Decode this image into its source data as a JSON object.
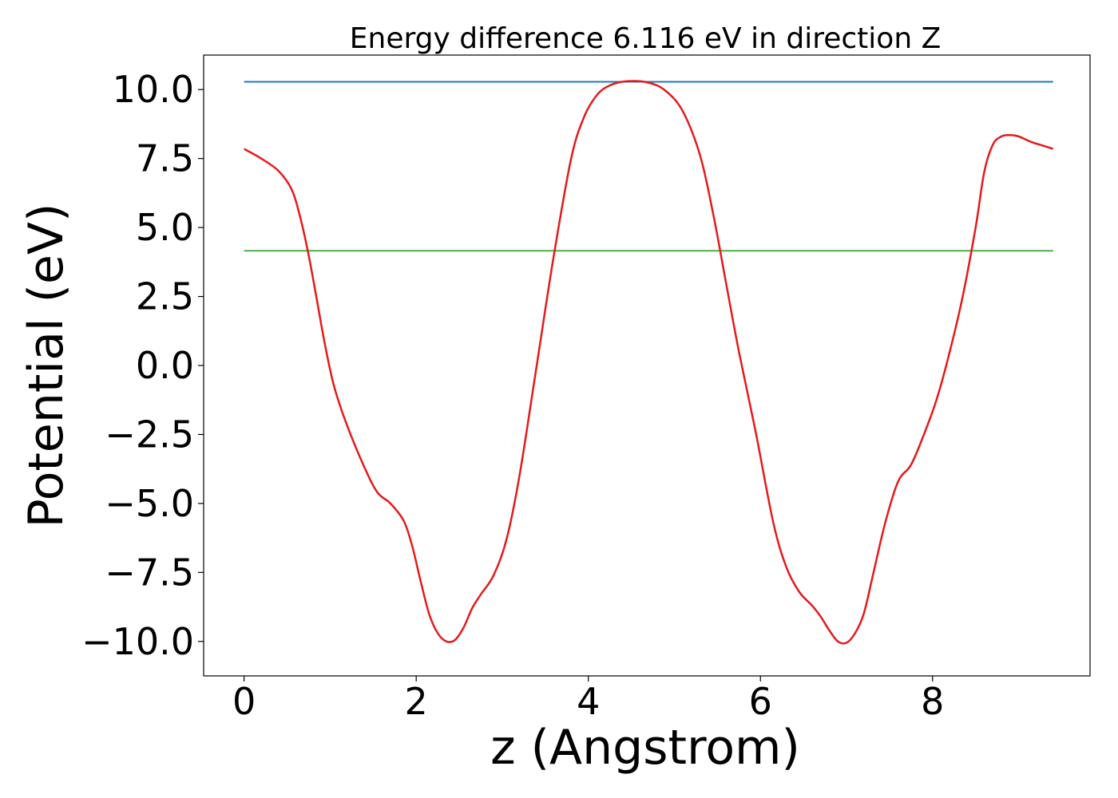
{
  "chart_data": {
    "type": "line",
    "title": "Energy difference 6.116 eV in direction Z",
    "xlabel": "z (Angstrom)",
    "ylabel": "Potential (eV)",
    "xlim": [
      -0.47,
      9.83
    ],
    "ylim": [
      -11.25,
      11.25
    ],
    "xticks": [
      0,
      2,
      4,
      6,
      8
    ],
    "xtick_labels": [
      "0",
      "2",
      "4",
      "6",
      "8"
    ],
    "yticks": [
      -10,
      -7.5,
      -5,
      -2.5,
      0,
      2.5,
      5,
      7.5,
      10
    ],
    "ytick_labels": [
      "−10.0",
      "−7.5",
      "−5.0",
      "−2.5",
      "0.0",
      "2.5",
      "5.0",
      "7.5",
      "10.0"
    ],
    "grid": false,
    "legend": "none",
    "series": [
      {
        "color": "#e41a1c",
        "x": [
          0,
          0.2,
          0.4,
          0.55,
          0.65,
          0.75,
          0.85,
          0.95,
          1.05,
          1.2,
          1.4,
          1.55,
          1.7,
          1.85,
          1.95,
          2.05,
          2.15,
          2.25,
          2.35,
          2.45,
          2.55,
          2.65,
          2.75,
          2.9,
          3.05,
          3.2,
          3.4,
          3.6,
          3.8,
          3.95,
          4.1,
          4.25,
          4.45,
          4.7,
          4.9,
          5.1,
          5.3,
          5.45,
          5.6,
          5.75,
          5.95,
          6.15,
          6.3,
          6.45,
          6.6,
          6.7,
          6.8,
          6.9,
          7.0,
          7.1,
          7.2,
          7.3,
          7.45,
          7.6,
          7.75,
          7.9,
          8.05,
          8.2,
          8.35,
          8.5,
          8.6,
          8.7,
          8.8,
          8.9,
          9.0,
          9.15,
          9.3,
          9.4
        ],
        "y": [
          7.85,
          7.5,
          7.05,
          6.4,
          5.4,
          4.0,
          2.3,
          0.6,
          -0.8,
          -2.2,
          -3.7,
          -4.6,
          -5.0,
          -5.6,
          -6.5,
          -7.8,
          -9.0,
          -9.7,
          -10.0,
          -9.95,
          -9.5,
          -8.8,
          -8.3,
          -7.6,
          -6.3,
          -4.0,
          0.0,
          4.0,
          7.5,
          9.0,
          9.8,
          10.15,
          10.3,
          10.25,
          9.95,
          9.2,
          7.6,
          5.5,
          3.0,
          0.5,
          -2.5,
          -5.7,
          -7.3,
          -8.2,
          -8.7,
          -9.1,
          -9.6,
          -10.0,
          -10.05,
          -9.7,
          -9.0,
          -7.7,
          -5.7,
          -4.2,
          -3.6,
          -2.5,
          -1.2,
          0.5,
          2.5,
          5.0,
          7.0,
          8.0,
          8.3,
          8.35,
          8.3,
          8.1,
          7.95,
          7.85
        ]
      },
      {
        "color": "#1f77b4",
        "x": [
          0,
          9.4
        ],
        "y": [
          10.28,
          10.28
        ]
      },
      {
        "color": "#4daf4a",
        "x": [
          0,
          9.4
        ],
        "y": [
          4.16,
          4.16
        ]
      }
    ]
  }
}
